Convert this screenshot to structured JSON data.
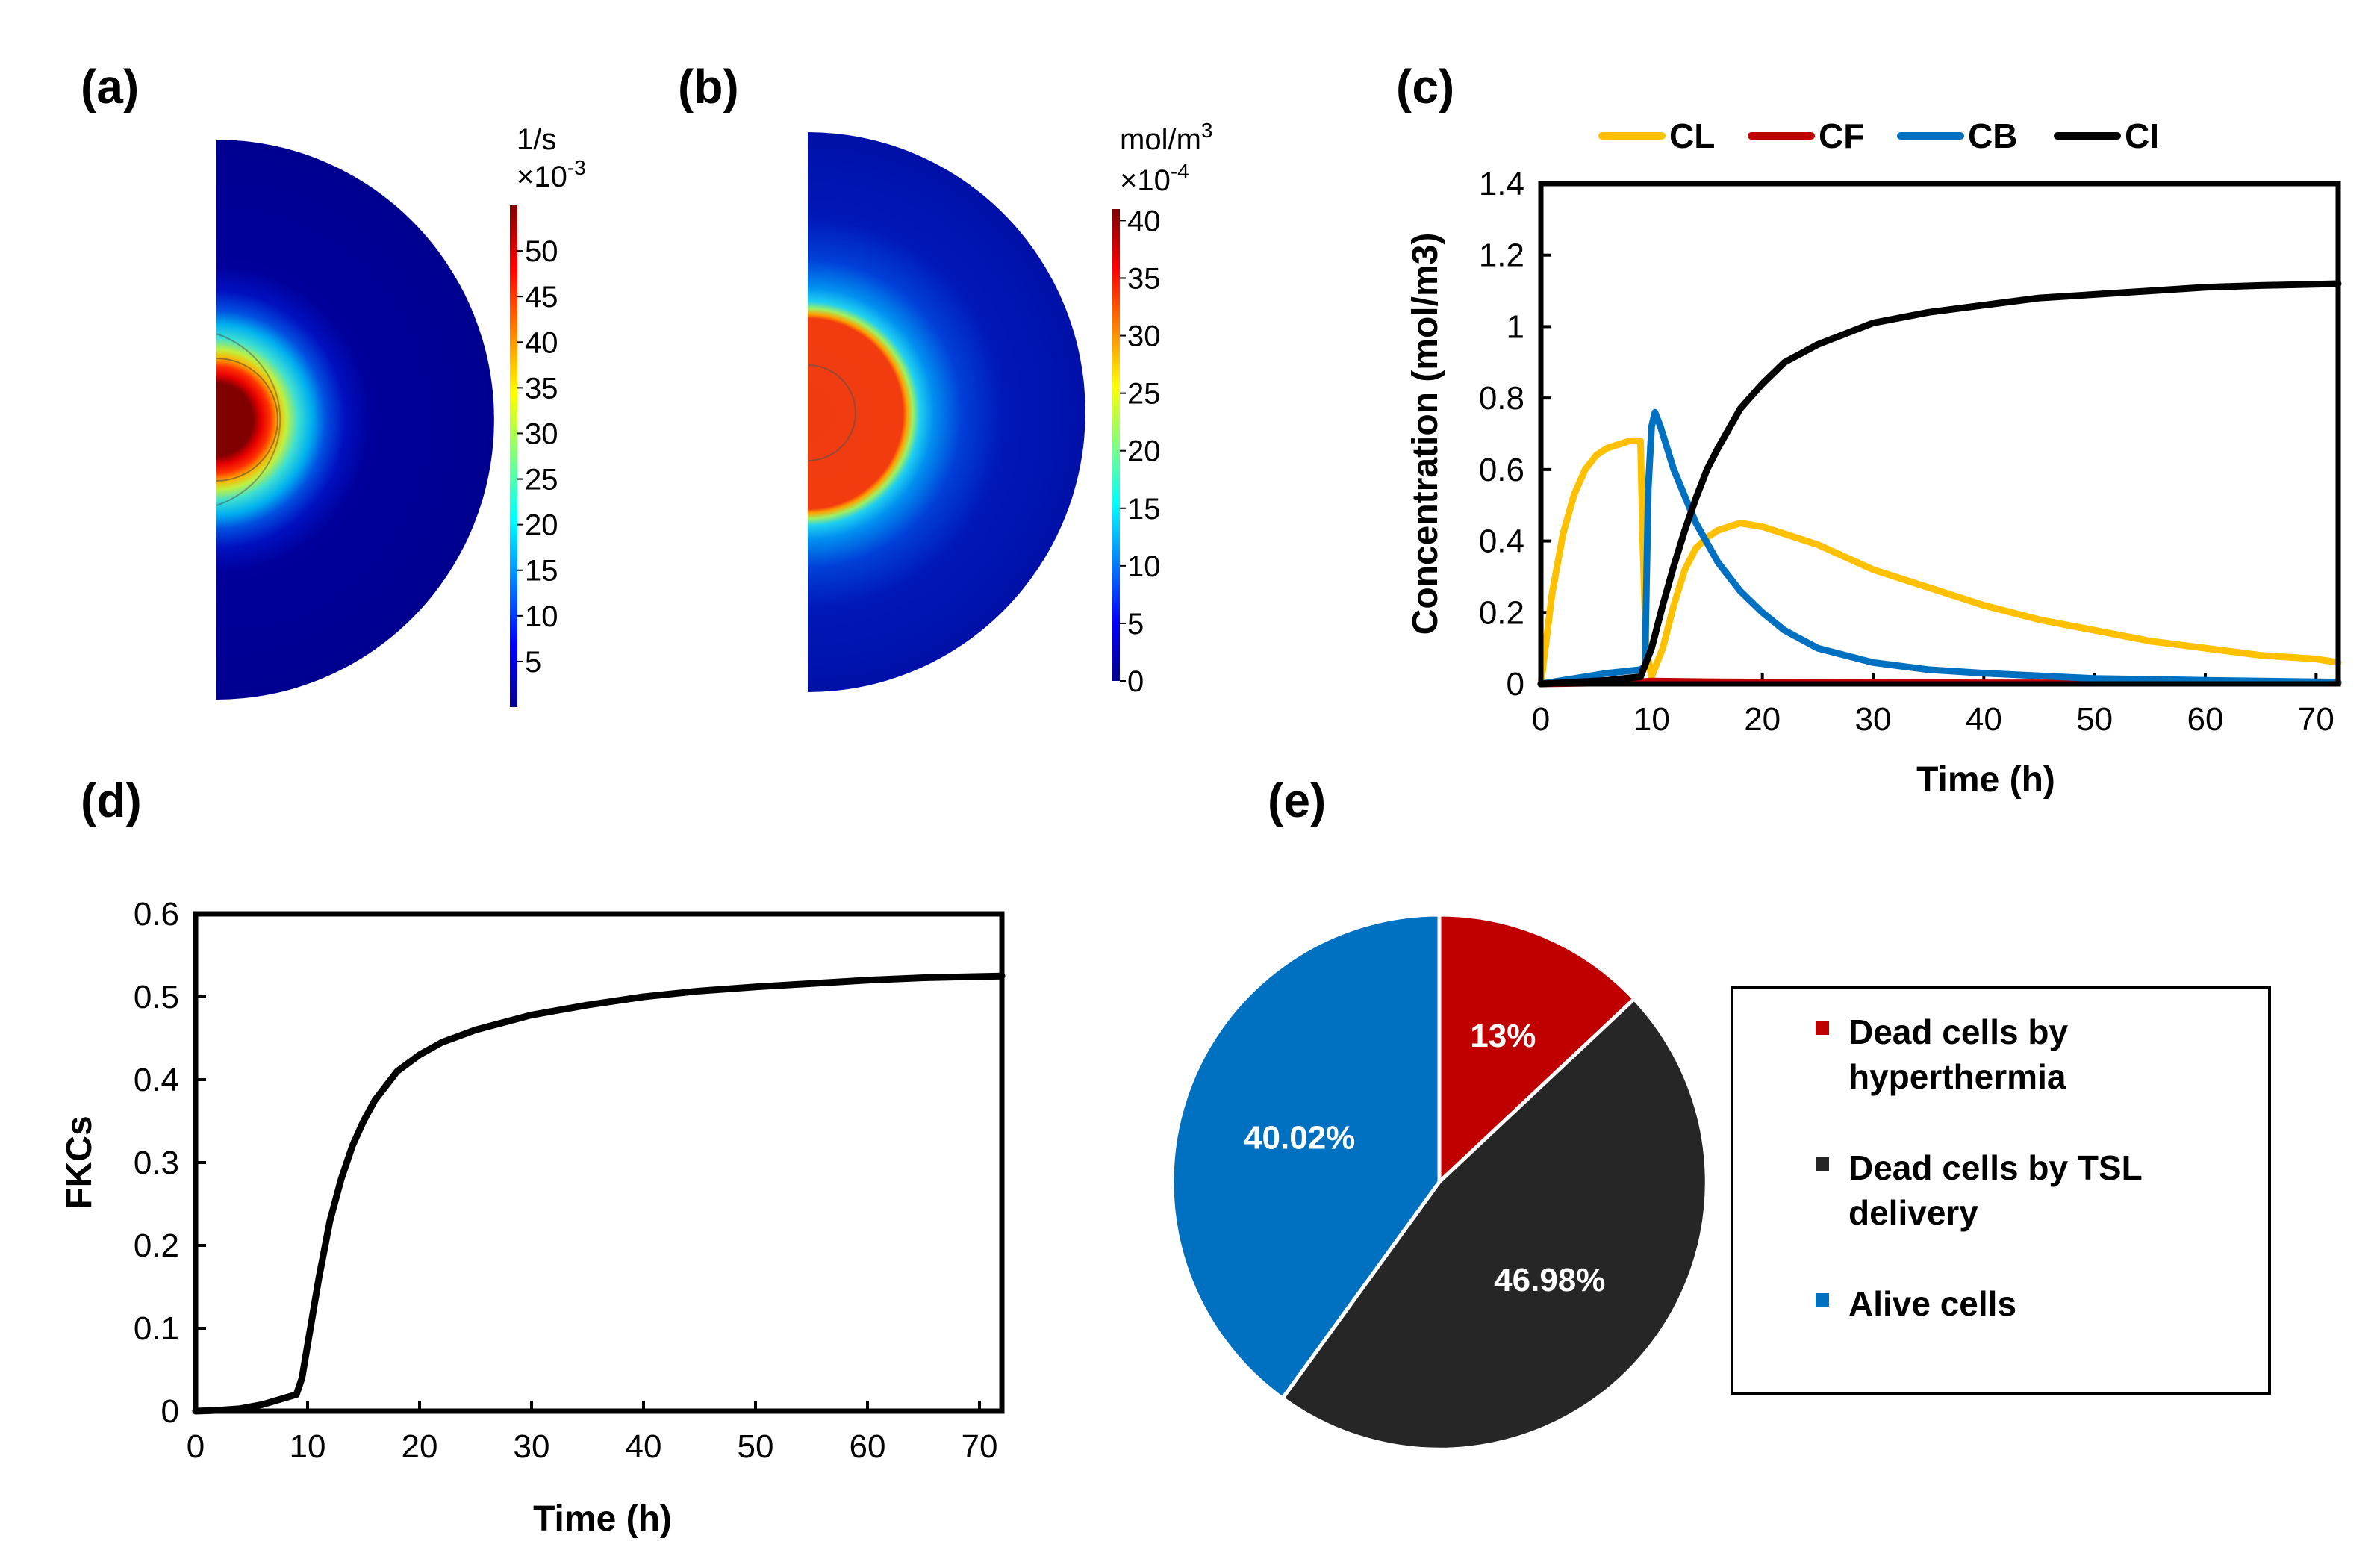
{
  "panels": {
    "a": {
      "label": "(a)",
      "unit": "1/s",
      "multiplier_base": "×10",
      "multiplier_exp": "-3",
      "colorbar_ticks": [
        "5",
        "10",
        "15",
        "20",
        "25",
        "30",
        "35",
        "40",
        "45",
        "50"
      ],
      "colorbar_range": [
        0,
        55
      ]
    },
    "b": {
      "label": "(b)",
      "unit_base": "mol/m",
      "unit_exp": "3",
      "multiplier_base": "×10",
      "multiplier_exp": "-4",
      "colorbar_ticks": [
        "0",
        "5",
        "10",
        "15",
        "20",
        "25",
        "30",
        "35",
        "40"
      ],
      "colorbar_range": [
        0,
        41
      ]
    },
    "c": {
      "label": "(c)"
    },
    "d": {
      "label": "(d)"
    },
    "e": {
      "label": "(e)"
    }
  },
  "chart_data": [
    {
      "id": "c",
      "type": "line",
      "xlabel": "Time (h)",
      "ylabel": "Concentration (mol/m3)",
      "xlim": [
        0,
        72
      ],
      "ylim": [
        0,
        1.4
      ],
      "xticks": [
        0,
        10,
        20,
        30,
        40,
        50,
        60,
        70
      ],
      "yticks": [
        0,
        0.2,
        0.4,
        0.6,
        0.8,
        1,
        1.2,
        1.4
      ],
      "xtick_labels": [
        "0",
        "10",
        "20",
        "30",
        "40",
        "50",
        "60",
        "70"
      ],
      "ytick_labels": [
        "0",
        "0.2",
        "0.4",
        "0.6",
        "0.8",
        "1",
        "1.2",
        "1.4"
      ],
      "legend": "top",
      "series": [
        {
          "name": "CL",
          "color": "#FFC000",
          "points": [
            [
              0,
              0
            ],
            [
              1,
              0.25
            ],
            [
              2,
              0.42
            ],
            [
              3,
              0.53
            ],
            [
              4,
              0.6
            ],
            [
              5,
              0.64
            ],
            [
              6,
              0.66
            ],
            [
              7,
              0.67
            ],
            [
              8,
              0.68
            ],
            [
              9,
              0.68
            ],
            [
              9.2,
              0.4
            ],
            [
              9.5,
              0.1
            ],
            [
              10,
              0.02
            ],
            [
              11,
              0.1
            ],
            [
              12,
              0.22
            ],
            [
              13,
              0.32
            ],
            [
              14,
              0.38
            ],
            [
              15,
              0.41
            ],
            [
              16,
              0.43
            ],
            [
              17,
              0.44
            ],
            [
              18,
              0.45
            ],
            [
              20,
              0.44
            ],
            [
              25,
              0.39
            ],
            [
              30,
              0.32
            ],
            [
              35,
              0.27
            ],
            [
              40,
              0.22
            ],
            [
              45,
              0.18
            ],
            [
              50,
              0.15
            ],
            [
              55,
              0.12
            ],
            [
              60,
              0.1
            ],
            [
              65,
              0.08
            ],
            [
              70,
              0.07
            ],
            [
              72,
              0.06
            ]
          ]
        },
        {
          "name": "CF",
          "color": "#C00000",
          "points": [
            [
              0,
              0
            ],
            [
              8,
              0.004
            ],
            [
              9,
              0.006
            ],
            [
              10,
              0.008
            ],
            [
              15,
              0.006
            ],
            [
              20,
              0.005
            ],
            [
              30,
              0.004
            ],
            [
              40,
              0.003
            ],
            [
              50,
              0.003
            ],
            [
              60,
              0.002
            ],
            [
              72,
              0.002
            ]
          ]
        },
        {
          "name": "CB",
          "color": "#0070C0",
          "points": [
            [
              0,
              0
            ],
            [
              3,
              0.015
            ],
            [
              6,
              0.03
            ],
            [
              9,
              0.04
            ],
            [
              9.4,
              0.05
            ],
            [
              9.7,
              0.55
            ],
            [
              10,
              0.72
            ],
            [
              10.3,
              0.76
            ],
            [
              10.8,
              0.72
            ],
            [
              12,
              0.6
            ],
            [
              14,
              0.45
            ],
            [
              16,
              0.34
            ],
            [
              18,
              0.26
            ],
            [
              20,
              0.2
            ],
            [
              22,
              0.15
            ],
            [
              25,
              0.1
            ],
            [
              30,
              0.06
            ],
            [
              35,
              0.04
            ],
            [
              40,
              0.03
            ],
            [
              50,
              0.015
            ],
            [
              60,
              0.01
            ],
            [
              72,
              0.005
            ]
          ]
        },
        {
          "name": "CI",
          "color": "#000000",
          "points": [
            [
              0,
              0
            ],
            [
              3,
              0.005
            ],
            [
              6,
              0.01
            ],
            [
              9,
              0.02
            ],
            [
              10,
              0.1
            ],
            [
              11,
              0.22
            ],
            [
              12,
              0.33
            ],
            [
              13,
              0.43
            ],
            [
              14,
              0.52
            ],
            [
              15,
              0.6
            ],
            [
              16,
              0.66
            ],
            [
              18,
              0.77
            ],
            [
              20,
              0.84
            ],
            [
              22,
              0.9
            ],
            [
              25,
              0.95
            ],
            [
              30,
              1.01
            ],
            [
              35,
              1.04
            ],
            [
              40,
              1.06
            ],
            [
              45,
              1.08
            ],
            [
              50,
              1.09
            ],
            [
              55,
              1.1
            ],
            [
              60,
              1.11
            ],
            [
              65,
              1.115
            ],
            [
              72,
              1.12
            ]
          ]
        }
      ]
    },
    {
      "id": "d",
      "type": "line",
      "xlabel": "Time (h)",
      "ylabel": "FKCs",
      "xlim": [
        0,
        72
      ],
      "ylim": [
        0,
        0.6
      ],
      "xticks": [
        0,
        10,
        20,
        30,
        40,
        50,
        60,
        70
      ],
      "yticks": [
        0,
        0.1,
        0.2,
        0.3,
        0.4,
        0.5,
        0.6
      ],
      "xtick_labels": [
        "0",
        "10",
        "20",
        "30",
        "40",
        "50",
        "60",
        "70"
      ],
      "ytick_labels": [
        "0",
        "0.1",
        "0.2",
        "0.3",
        "0.4",
        "0.5",
        "0.6"
      ],
      "series": [
        {
          "name": "FKCs",
          "color": "#000000",
          "points": [
            [
              0,
              0
            ],
            [
              2,
              0.001
            ],
            [
              4,
              0.003
            ],
            [
              6,
              0.008
            ],
            [
              8,
              0.016
            ],
            [
              9,
              0.02
            ],
            [
              9.5,
              0.04
            ],
            [
              10,
              0.08
            ],
            [
              11,
              0.16
            ],
            [
              12,
              0.23
            ],
            [
              13,
              0.28
            ],
            [
              14,
              0.32
            ],
            [
              15,
              0.35
            ],
            [
              16,
              0.375
            ],
            [
              18,
              0.41
            ],
            [
              20,
              0.43
            ],
            [
              22,
              0.445
            ],
            [
              25,
              0.46
            ],
            [
              30,
              0.478
            ],
            [
              35,
              0.49
            ],
            [
              40,
              0.5
            ],
            [
              45,
              0.507
            ],
            [
              50,
              0.512
            ],
            [
              55,
              0.516
            ],
            [
              60,
              0.52
            ],
            [
              65,
              0.523
            ],
            [
              72,
              0.525
            ]
          ]
        }
      ]
    },
    {
      "id": "e",
      "type": "pie",
      "legend": "right",
      "labels": [
        "Dead cells by hyperthermia",
        "Dead cells by TSL delivery",
        "Alive cells"
      ],
      "legend_lines": [
        [
          "Dead cells by",
          "hyperthermia"
        ],
        [
          "Dead cells by TSL",
          "delivery"
        ],
        [
          "Alive cells"
        ]
      ],
      "values": [
        13,
        46.98,
        40.02
      ],
      "value_labels": [
        "13%",
        "46.98%",
        "40.02%"
      ],
      "colors": [
        "#C00000",
        "#262626",
        "#0070C0"
      ]
    }
  ]
}
